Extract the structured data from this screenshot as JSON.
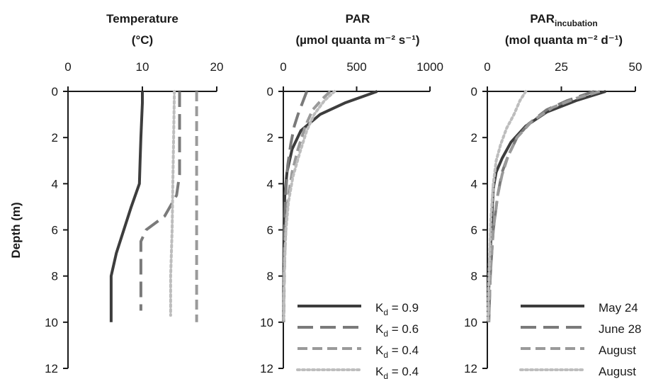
{
  "y_axis_label": "Depth (m)",
  "chart_data": [
    {
      "type": "line",
      "title": "Temperature",
      "xlabel": "(°C)",
      "x_ticks": [
        "0",
        "10",
        "20"
      ],
      "xlim": [
        0,
        20
      ],
      "y_ticks": [
        "0",
        "2",
        "4",
        "6",
        "8",
        "10",
        "12"
      ],
      "ylim": [
        0,
        12
      ],
      "y_inverted": true,
      "series": [
        {
          "style": "solid",
          "color": "#3d3d3d",
          "points": [
            [
              10,
              0
            ],
            [
              10,
              0.5
            ],
            [
              9.8,
              2
            ],
            [
              9.7,
              3
            ],
            [
              9.6,
              4
            ],
            [
              8.5,
              5
            ],
            [
              7.5,
              6
            ],
            [
              6.5,
              7
            ],
            [
              5.8,
              8
            ],
            [
              5.8,
              9
            ],
            [
              5.8,
              10
            ]
          ]
        },
        {
          "style": "long-dash",
          "color": "#7a7a7a",
          "points": [
            [
              15,
              0
            ],
            [
              15,
              1
            ],
            [
              15,
              2
            ],
            [
              15,
              3
            ],
            [
              15,
              3.6
            ],
            [
              14.6,
              4.5
            ],
            [
              13,
              5.4
            ],
            [
              10.5,
              6
            ],
            [
              9.8,
              6.5
            ],
            [
              9.8,
              8
            ],
            [
              9.8,
              9.5
            ]
          ]
        },
        {
          "style": "short-dash",
          "color": "#9a9a9a",
          "points": [
            [
              17.3,
              0
            ],
            [
              17.3,
              2
            ],
            [
              17.3,
              4
            ],
            [
              17.3,
              6
            ],
            [
              17.3,
              8
            ],
            [
              17.3,
              10
            ]
          ]
        },
        {
          "style": "dotted",
          "color": "#bdbdbd",
          "points": [
            [
              14.3,
              0
            ],
            [
              14.2,
              2
            ],
            [
              14.1,
              4
            ],
            [
              14,
              6
            ],
            [
              13.8,
              8
            ],
            [
              13.8,
              9.7
            ]
          ]
        }
      ]
    },
    {
      "type": "line",
      "title": "PAR",
      "xlabel": "(µmol quanta m⁻² s⁻¹)",
      "x_ticks": [
        "0",
        "500",
        "1000"
      ],
      "xlim": [
        0,
        1000
      ],
      "y_ticks": [
        "0",
        "2",
        "4",
        "6",
        "8",
        "10",
        "12"
      ],
      "ylim": [
        0,
        12
      ],
      "y_inverted": true,
      "series": [
        {
          "style": "solid",
          "color": "#3d3d3d",
          "points": [
            [
              640,
              0
            ],
            [
              420,
              0.5
            ],
            [
              250,
              1
            ],
            [
              120,
              1.7
            ],
            [
              60,
              2.5
            ],
            [
              25,
              3.5
            ],
            [
              10,
              4.5
            ],
            [
              5,
              5.5
            ],
            [
              3,
              7
            ],
            [
              2,
              8.5
            ],
            [
              1,
              10
            ]
          ]
        },
        {
          "style": "long-dash",
          "color": "#7a7a7a",
          "points": [
            [
              160,
              0
            ],
            [
              130,
              0.5
            ],
            [
              100,
              1
            ],
            [
              75,
              1.5
            ],
            [
              50,
              2.3
            ],
            [
              30,
              3.2
            ],
            [
              15,
              4.5
            ],
            [
              8,
              6
            ],
            [
              4,
              8
            ],
            [
              2,
              10
            ]
          ]
        },
        {
          "style": "short-dash",
          "color": "#9a9a9a",
          "points": [
            [
              320,
              0
            ],
            [
              270,
              0.3
            ],
            [
              200,
              0.8
            ],
            [
              150,
              1.5
            ],
            [
              100,
              2.5
            ],
            [
              60,
              3.5
            ],
            [
              35,
              4.5
            ],
            [
              20,
              5.5
            ],
            [
              10,
              7
            ],
            [
              6,
              8.5
            ],
            [
              3,
              10
            ]
          ]
        },
        {
          "style": "dotted",
          "color": "#bdbdbd",
          "points": [
            [
              350,
              0
            ],
            [
              280,
              0.4
            ],
            [
              210,
              1
            ],
            [
              160,
              1.7
            ],
            [
              110,
              2.7
            ],
            [
              65,
              3.7
            ],
            [
              35,
              4.8
            ],
            [
              18,
              6
            ],
            [
              8,
              7.5
            ],
            [
              4,
              9
            ],
            [
              2,
              10
            ]
          ]
        }
      ],
      "legend": {
        "position": "bottom-right",
        "labels": [
          {
            "base": "K",
            "sub": "d",
            "suffix": " = 0.9"
          },
          {
            "base": "K",
            "sub": "d",
            "suffix": " = 0.6"
          },
          {
            "base": "K",
            "sub": "d",
            "suffix": " = 0.4"
          },
          {
            "base": "K",
            "sub": "d",
            "suffix": " = 0.4"
          }
        ]
      }
    },
    {
      "type": "line",
      "title": "PAR",
      "title_sub": "incubation",
      "xlabel": "(mol quanta m⁻² d⁻¹)",
      "x_ticks": [
        "0",
        "25",
        "50"
      ],
      "xlim": [
        0,
        50
      ],
      "y_ticks": [
        "0",
        "2",
        "4",
        "6",
        "8",
        "10",
        "12"
      ],
      "ylim": [
        0,
        12
      ],
      "y_inverted": true,
      "series": [
        {
          "style": "solid",
          "color": "#3d3d3d",
          "points": [
            [
              40,
              0
            ],
            [
              30,
              0.4
            ],
            [
              20,
              0.9
            ],
            [
              13,
              1.5
            ],
            [
              8,
              2.2
            ],
            [
              5,
              2.9
            ],
            [
              3,
              3.5
            ],
            [
              2,
              4.2
            ],
            [
              1.5,
              5.5
            ],
            [
              1,
              7
            ],
            [
              0.5,
              8.5
            ],
            [
              0.3,
              10
            ]
          ]
        },
        {
          "style": "long-dash",
          "color": "#7a7a7a",
          "points": [
            [
              36,
              0
            ],
            [
              27,
              0.4
            ],
            [
              20,
              0.8
            ],
            [
              14,
              1.4
            ],
            [
              10,
              2
            ],
            [
              7,
              2.8
            ],
            [
              5,
              3.5
            ],
            [
              3.5,
              4.5
            ],
            [
              2,
              6
            ],
            [
              1,
              8
            ],
            [
              0.5,
              10
            ]
          ]
        },
        {
          "style": "short-dash",
          "color": "#9a9a9a",
          "points": [
            [
              38,
              0
            ],
            [
              30,
              0.3
            ],
            [
              22,
              0.7
            ],
            [
              15,
              1.3
            ],
            [
              10,
              2
            ],
            [
              7,
              2.8
            ],
            [
              5,
              3.6
            ],
            [
              3.5,
              4.5
            ],
            [
              2,
              6
            ],
            [
              1,
              8
            ],
            [
              0.5,
              10
            ]
          ]
        },
        {
          "style": "dotted",
          "color": "#bdbdbd",
          "points": [
            [
              13,
              0
            ],
            [
              11,
              0.4
            ],
            [
              9,
              1
            ],
            [
              6.5,
              1.6
            ],
            [
              4.5,
              2.3
            ],
            [
              3,
              3
            ],
            [
              2,
              4
            ],
            [
              1.2,
              5.5
            ],
            [
              0.8,
              7
            ],
            [
              0.4,
              8.5
            ],
            [
              0.2,
              10
            ]
          ]
        }
      ],
      "legend": {
        "position": "bottom-right",
        "labels": [
          {
            "base": "May 24"
          },
          {
            "base": "June 28"
          },
          {
            "base": "August"
          },
          {
            "base": "August"
          }
        ]
      }
    }
  ]
}
